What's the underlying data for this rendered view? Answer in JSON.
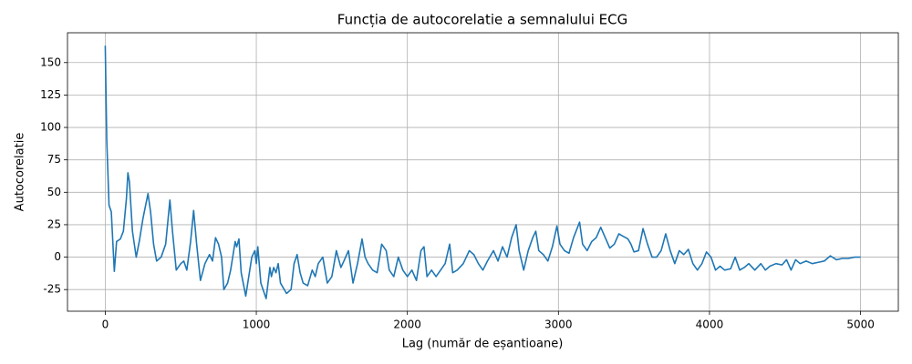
{
  "chart_data": {
    "type": "line",
    "title": "Funcția de autocorelatie a semnalului ECG",
    "x_label": "Lag (număr de eșantioane)",
    "y_label": "Autocorelatie",
    "x": [
      0,
      10,
      25,
      40,
      60,
      75,
      100,
      120,
      140,
      150,
      160,
      180,
      205,
      225,
      250,
      283,
      300,
      320,
      340,
      370,
      400,
      428,
      445,
      470,
      500,
      520,
      540,
      565,
      585,
      605,
      630,
      660,
      690,
      710,
      730,
      750,
      770,
      785,
      810,
      830,
      860,
      870,
      885,
      900,
      930,
      950,
      970,
      990,
      1000,
      1010,
      1030,
      1065,
      1090,
      1100,
      1115,
      1130,
      1145,
      1160,
      1200,
      1230,
      1250,
      1270,
      1290,
      1310,
      1340,
      1370,
      1390,
      1410,
      1440,
      1470,
      1500,
      1530,
      1560,
      1580,
      1610,
      1640,
      1670,
      1700,
      1720,
      1740,
      1770,
      1800,
      1830,
      1860,
      1880,
      1910,
      1940,
      1970,
      2000,
      2030,
      2060,
      2090,
      2110,
      2130,
      2160,
      2190,
      2220,
      2250,
      2280,
      2300,
      2330,
      2370,
      2410,
      2440,
      2470,
      2500,
      2530,
      2570,
      2600,
      2630,
      2660,
      2690,
      2720,
      2740,
      2770,
      2800,
      2830,
      2850,
      2870,
      2900,
      2930,
      2960,
      2990,
      3010,
      3040,
      3070,
      3100,
      3140,
      3160,
      3190,
      3220,
      3250,
      3280,
      3310,
      3340,
      3370,
      3400,
      3430,
      3460,
      3480,
      3500,
      3530,
      3560,
      3590,
      3620,
      3650,
      3680,
      3710,
      3740,
      3770,
      3800,
      3830,
      3860,
      3890,
      3920,
      3950,
      3980,
      4010,
      4040,
      4070,
      4100,
      4140,
      4170,
      4200,
      4230,
      4260,
      4300,
      4340,
      4370,
      4400,
      4440,
      4480,
      4510,
      4540,
      4570,
      4600,
      4640,
      4680,
      4720,
      4760,
      4800,
      4840,
      4880,
      4920,
      4960,
      5000
    ],
    "series": [
      {
        "color": "#1f77b4",
        "values": [
          163,
          90,
          40,
          35,
          -11,
          12,
          14,
          20,
          45,
          65,
          58,
          20,
          0,
          12,
          30,
          49,
          35,
          10,
          -3,
          0,
          10,
          44,
          20,
          -10,
          -5,
          -3,
          -10,
          12,
          36,
          10,
          -18,
          -5,
          2,
          -3,
          15,
          10,
          0,
          -25,
          -20,
          -10,
          12,
          8,
          14,
          -12,
          -30,
          -15,
          0,
          5,
          -5,
          8,
          -20,
          -32,
          -8,
          -15,
          -8,
          -12,
          -5,
          -20,
          -28,
          -25,
          -5,
          2,
          -12,
          -20,
          -22,
          -10,
          -15,
          -5,
          0,
          -20,
          -15,
          5,
          -8,
          -3,
          5,
          -20,
          -5,
          14,
          0,
          -5,
          -10,
          -12,
          10,
          5,
          -10,
          -15,
          0,
          -10,
          -15,
          -10,
          -18,
          5,
          8,
          -15,
          -10,
          -15,
          -10,
          -5,
          10,
          -12,
          -10,
          -5,
          5,
          2,
          -5,
          -10,
          -3,
          5,
          -3,
          8,
          0,
          15,
          25,
          5,
          -10,
          5,
          15,
          20,
          5,
          2,
          -3,
          8,
          24,
          10,
          5,
          3,
          15,
          27,
          10,
          5,
          12,
          15,
          23,
          15,
          7,
          10,
          18,
          16,
          14,
          10,
          4,
          5,
          22,
          10,
          0,
          0,
          5,
          18,
          5,
          -5,
          5,
          2,
          6,
          -5,
          -10,
          -5,
          4,
          0,
          -10,
          -7,
          -10,
          -9,
          0,
          -10,
          -8,
          -5,
          -10,
          -5,
          -10,
          -7,
          -5,
          -6,
          -2,
          -10,
          -2,
          -5,
          -3,
          -5,
          -4,
          -3,
          1,
          -2,
          -1,
          -1,
          0,
          0
        ]
      }
    ],
    "xlim": [
      -250,
      5250
    ],
    "ylim": [
      -41.7,
      173
    ],
    "xticks": [
      0,
      1000,
      2000,
      3000,
      4000,
      5000
    ],
    "yticks": [
      -25,
      0,
      25,
      50,
      75,
      100,
      125,
      150
    ],
    "grid": true
  }
}
